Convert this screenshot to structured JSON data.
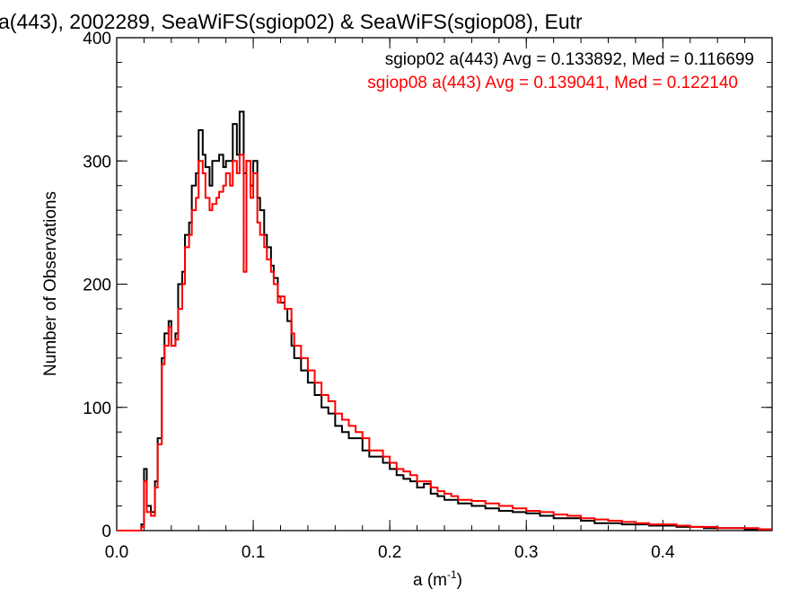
{
  "chart_data": {
    "type": "line",
    "title": "a(443), 2002289, SeaWiFS(sgiop02) & SeaWiFS(sgiop08), Eutr",
    "xlabel_main": "a (m",
    "xlabel_sup": "-1",
    "xlabel_close": ")",
    "ylabel": "Number of Observations",
    "xlim": [
      0.0,
      0.48
    ],
    "ylim": [
      0,
      400
    ],
    "x_ticks": [
      "0.0",
      "0.1",
      "0.2",
      "0.3",
      "0.4"
    ],
    "x_tick_values": [
      0.0,
      0.1,
      0.2,
      0.3,
      0.4
    ],
    "y_ticks": [
      "0",
      "100",
      "200",
      "300",
      "400"
    ],
    "y_tick_values": [
      0,
      100,
      200,
      300,
      400
    ],
    "step": "histogram",
    "series": [
      {
        "name": "sgiop02 a(443) Avg = 0.133892, Med = 0.116699",
        "color": "#000000",
        "x": [
          0.0,
          0.01,
          0.018,
          0.02,
          0.022,
          0.025,
          0.028,
          0.03,
          0.033,
          0.035,
          0.038,
          0.04,
          0.043,
          0.045,
          0.048,
          0.05,
          0.053,
          0.055,
          0.058,
          0.06,
          0.063,
          0.065,
          0.068,
          0.07,
          0.073,
          0.075,
          0.078,
          0.08,
          0.083,
          0.085,
          0.088,
          0.09,
          0.093,
          0.095,
          0.098,
          0.1,
          0.103,
          0.105,
          0.108,
          0.11,
          0.113,
          0.115,
          0.118,
          0.12,
          0.123,
          0.125,
          0.128,
          0.13,
          0.135,
          0.14,
          0.145,
          0.15,
          0.155,
          0.16,
          0.165,
          0.17,
          0.175,
          0.18,
          0.185,
          0.19,
          0.195,
          0.2,
          0.205,
          0.21,
          0.215,
          0.22,
          0.225,
          0.23,
          0.235,
          0.24,
          0.245,
          0.25,
          0.26,
          0.27,
          0.28,
          0.29,
          0.3,
          0.31,
          0.32,
          0.33,
          0.34,
          0.35,
          0.36,
          0.37,
          0.38,
          0.39,
          0.4,
          0.41,
          0.42,
          0.43,
          0.44,
          0.45,
          0.46,
          0.47,
          0.48
        ],
        "y": [
          0,
          0,
          5,
          50,
          20,
          15,
          40,
          75,
          140,
          160,
          170,
          150,
          160,
          200,
          210,
          240,
          250,
          280,
          290,
          325,
          305,
          295,
          280,
          300,
          300,
          305,
          295,
          300,
          300,
          330,
          305,
          340,
          290,
          300,
          280,
          300,
          270,
          260,
          240,
          230,
          215,
          205,
          190,
          185,
          180,
          170,
          150,
          140,
          130,
          120,
          110,
          100,
          95,
          85,
          80,
          75,
          75,
          65,
          60,
          60,
          55,
          50,
          45,
          42,
          40,
          35,
          38,
          30,
          28,
          25,
          25,
          22,
          20,
          18,
          16,
          15,
          14,
          12,
          10,
          10,
          8,
          6,
          6,
          5,
          5,
          4,
          4,
          3,
          3,
          2,
          2,
          2,
          1,
          1,
          1
        ],
        "note_ignore": ""
      },
      {
        "name": "sgiop08 a(443) Avg = 0.139041, Med = 0.122140",
        "color": "#ff0000",
        "x": [
          0.0,
          0.01,
          0.018,
          0.02,
          0.022,
          0.025,
          0.028,
          0.03,
          0.033,
          0.035,
          0.038,
          0.04,
          0.043,
          0.045,
          0.048,
          0.05,
          0.053,
          0.055,
          0.058,
          0.06,
          0.063,
          0.065,
          0.068,
          0.07,
          0.073,
          0.075,
          0.078,
          0.08,
          0.083,
          0.085,
          0.088,
          0.09,
          0.093,
          0.095,
          0.098,
          0.1,
          0.103,
          0.105,
          0.108,
          0.11,
          0.113,
          0.115,
          0.118,
          0.12,
          0.123,
          0.125,
          0.128,
          0.13,
          0.135,
          0.14,
          0.145,
          0.15,
          0.155,
          0.16,
          0.165,
          0.17,
          0.175,
          0.18,
          0.185,
          0.19,
          0.195,
          0.2,
          0.205,
          0.21,
          0.215,
          0.22,
          0.225,
          0.23,
          0.235,
          0.24,
          0.245,
          0.25,
          0.26,
          0.27,
          0.28,
          0.29,
          0.3,
          0.31,
          0.32,
          0.33,
          0.34,
          0.35,
          0.36,
          0.37,
          0.38,
          0.39,
          0.4,
          0.41,
          0.42,
          0.43,
          0.44,
          0.45,
          0.46,
          0.47,
          0.48
        ],
        "y": [
          0,
          0,
          3,
          40,
          15,
          12,
          35,
          70,
          135,
          150,
          165,
          150,
          155,
          180,
          200,
          230,
          240,
          260,
          270,
          300,
          290,
          270,
          260,
          265,
          270,
          275,
          280,
          290,
          280,
          300,
          290,
          305,
          210,
          300,
          270,
          290,
          250,
          240,
          230,
          220,
          210,
          200,
          185,
          190,
          180,
          180,
          160,
          150,
          140,
          130,
          120,
          110,
          105,
          95,
          90,
          85,
          80,
          75,
          65,
          65,
          60,
          55,
          50,
          48,
          45,
          40,
          40,
          35,
          32,
          30,
          28,
          25,
          24,
          22,
          20,
          18,
          16,
          15,
          13,
          12,
          10,
          9,
          8,
          7,
          6,
          5,
          5,
          4,
          3,
          3,
          2,
          2,
          2,
          1,
          1
        ],
        "note_ignore": ""
      }
    ]
  }
}
